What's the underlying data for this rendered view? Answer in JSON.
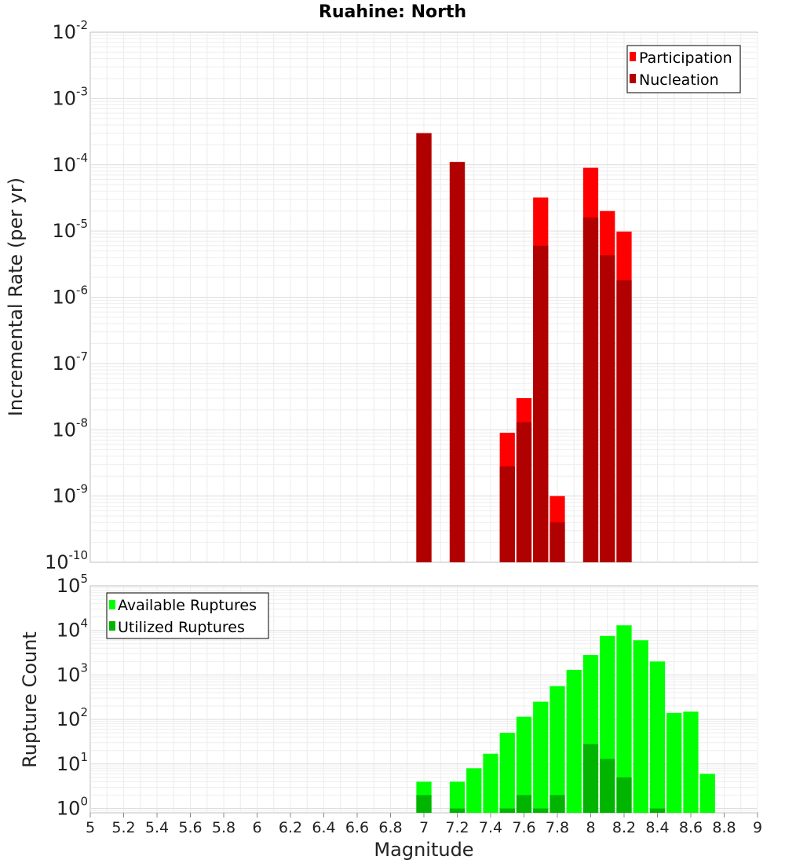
{
  "chart_data": [
    {
      "type": "bar",
      "title": "Ruahine: North",
      "xlabel": "",
      "ylabel": "Incremental Rate (per yr)",
      "yscale": "log",
      "ylim": [
        1e-10,
        0.01
      ],
      "xlim": [
        5,
        9
      ],
      "y_tick_exponents": [
        "-10",
        "-9",
        "-8",
        "-7",
        "-6",
        "-5",
        "-4",
        "-3",
        "-2"
      ],
      "bar_width": 0.1,
      "legend": {
        "placement": "top-right",
        "entries": [
          "Participation",
          "Nucleation"
        ]
      },
      "grid": true,
      "series": [
        {
          "name": "Participation",
          "color": "#ff0000",
          "x": [
            7.0,
            7.2,
            7.5,
            7.6,
            7.7,
            7.8,
            8.0,
            8.1,
            8.2
          ],
          "values": [
            0.0003,
            0.00011,
            9e-09,
            3e-08,
            3.2e-05,
            1e-09,
            9e-05,
            2e-05,
            9.8e-06
          ]
        },
        {
          "name": "Nucleation",
          "color": "#b00000",
          "x": [
            7.0,
            7.2,
            7.5,
            7.6,
            7.7,
            7.8,
            8.0,
            8.1,
            8.2
          ],
          "values": [
            0.0003,
            0.00011,
            2.8e-09,
            1.3e-08,
            6e-06,
            4e-10,
            1.6e-05,
            4.3e-06,
            1.8e-06
          ]
        }
      ]
    },
    {
      "type": "bar",
      "title": "",
      "xlabel": "Magnitude",
      "ylabel": "Rupture Count",
      "yscale": "log",
      "ylim": [
        0.8,
        100000
      ],
      "xlim": [
        5,
        9
      ],
      "y_tick_exponents": [
        "0",
        "1",
        "2",
        "3",
        "4",
        "5"
      ],
      "x_ticks": [
        "5",
        "5.2",
        "5.4",
        "5.6",
        "5.8",
        "6",
        "6.2",
        "6.4",
        "6.6",
        "6.8",
        "7",
        "7.2",
        "7.4",
        "7.6",
        "7.8",
        "8",
        "8.2",
        "8.4",
        "8.6",
        "8.8",
        "9"
      ],
      "bar_width": 0.1,
      "legend": {
        "placement": "top-left",
        "entries": [
          "Available Ruptures",
          "Utilized Ruptures"
        ]
      },
      "grid": true,
      "series": [
        {
          "name": "Available Ruptures",
          "color": "#00ff00",
          "x": [
            7.0,
            7.2,
            7.3,
            7.4,
            7.5,
            7.6,
            7.7,
            7.8,
            7.9,
            8.0,
            8.1,
            8.2,
            8.3,
            8.4,
            8.5,
            8.6,
            8.7
          ],
          "values": [
            4,
            4,
            8,
            17,
            50,
            115,
            250,
            560,
            1300,
            2800,
            7500,
            13000,
            6000,
            2000,
            140,
            150,
            6
          ]
        },
        {
          "name": "Utilized Ruptures",
          "color": "#00b400",
          "x": [
            7.0,
            7.2,
            7.5,
            7.6,
            7.7,
            7.8,
            8.0,
            8.1,
            8.2,
            8.4
          ],
          "values": [
            2,
            1,
            1,
            2,
            1,
            2,
            28,
            13,
            5,
            1
          ]
        }
      ]
    }
  ]
}
